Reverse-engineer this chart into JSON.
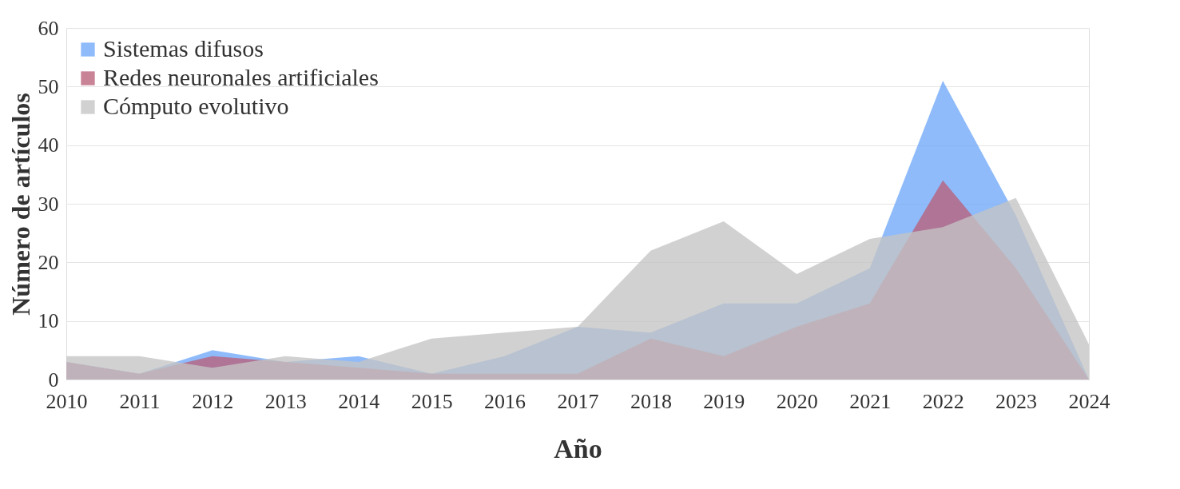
{
  "chart_data": {
    "type": "area",
    "xlabel": "Año",
    "ylabel": "Número de artículos",
    "categories": [
      "2010",
      "2011",
      "2012",
      "2013",
      "2014",
      "2015",
      "2016",
      "2017",
      "2018",
      "2019",
      "2020",
      "2021",
      "2022",
      "2023",
      "2024"
    ],
    "series": [
      {
        "name": "Sistemas difusos",
        "color": "#6fa8f8",
        "values": [
          3,
          1,
          5,
          3,
          4,
          1,
          4,
          9,
          8,
          13,
          13,
          19,
          51,
          28,
          0
        ]
      },
      {
        "name": "Redes neuronales artificiales",
        "color": "#b8607a",
        "values": [
          3,
          1,
          4,
          3,
          2,
          1,
          1,
          1,
          7,
          4,
          9,
          13,
          34,
          19,
          0
        ]
      },
      {
        "name": "Cómputo evolutivo",
        "color": "#c4c4c4",
        "values": [
          4,
          4,
          2,
          4,
          3,
          7,
          8,
          9,
          22,
          27,
          18,
          24,
          26,
          31,
          6
        ]
      }
    ],
    "ylim": [
      0,
      60
    ],
    "yticks": [
      0,
      10,
      20,
      30,
      40,
      50,
      60
    ],
    "grid": "y",
    "legend": "top left"
  }
}
